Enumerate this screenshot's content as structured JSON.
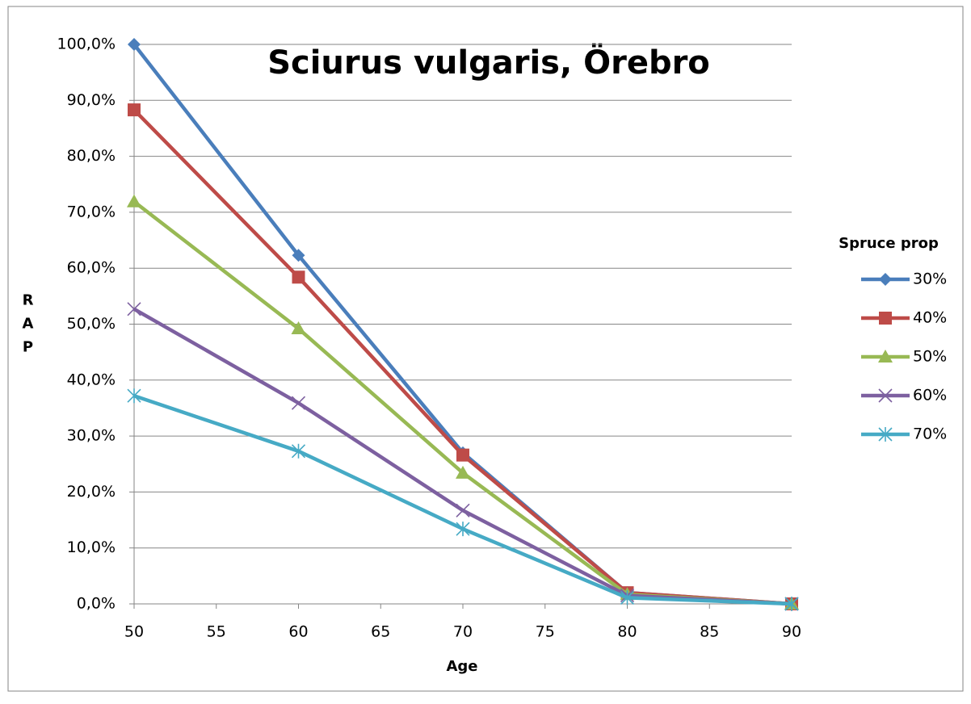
{
  "chart_data": {
    "type": "line",
    "title": "Sciurus vulgaris, Örebro",
    "x_label": "Age",
    "y_label": "RAP",
    "legend_title": "Spruce prop",
    "legend": "right",
    "grid": true,
    "x": [
      50,
      60,
      70,
      80,
      90
    ],
    "xlim": [
      50,
      90
    ],
    "xticks": [
      50,
      55,
      60,
      65,
      70,
      75,
      80,
      85,
      90
    ],
    "ylim": [
      0,
      100
    ],
    "yticks": [
      {
        "value": 0,
        "label": "0,0%"
      },
      {
        "value": 10,
        "label": "10,0%"
      },
      {
        "value": 20,
        "label": "20,0%"
      },
      {
        "value": 30,
        "label": "30,0%"
      },
      {
        "value": 40,
        "label": "40,0%"
      },
      {
        "value": 50,
        "label": "50,0%"
      },
      {
        "value": 60,
        "label": "60,0%"
      },
      {
        "value": 70,
        "label": "70,0%"
      },
      {
        "value": 80,
        "label": "80,0%"
      },
      {
        "value": 90,
        "label": "90,0%"
      },
      {
        "value": 100,
        "label": "100,0%"
      }
    ],
    "series": [
      {
        "name": "30%",
        "color": "#4a7ebb",
        "marker": "diamond",
        "values": [
          100,
          62.3,
          27.0,
          2.0,
          0
        ]
      },
      {
        "name": "40%",
        "color": "#be4b48",
        "marker": "square",
        "values": [
          88.3,
          58.4,
          26.6,
          2.0,
          0
        ]
      },
      {
        "name": "50%",
        "color": "#98b954",
        "marker": "triangle",
        "values": [
          71.9,
          49.2,
          23.4,
          1.7,
          0
        ]
      },
      {
        "name": "60%",
        "color": "#7d60a0",
        "marker": "x",
        "values": [
          52.7,
          35.9,
          16.7,
          1.5,
          0
        ]
      },
      {
        "name": "70%",
        "color": "#46aac5",
        "marker": "asterisk",
        "values": [
          37.2,
          27.3,
          13.4,
          1.1,
          0
        ]
      }
    ]
  }
}
